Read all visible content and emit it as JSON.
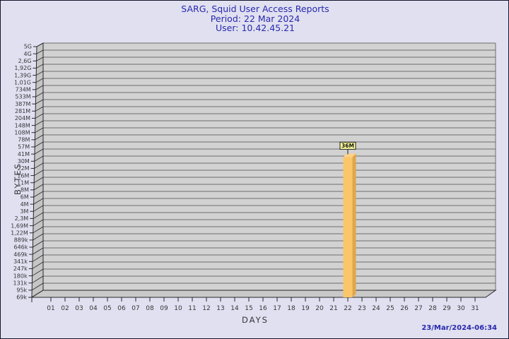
{
  "footer": {
    "timestamp": "23/Mar/2024-06:34"
  },
  "chart_data": {
    "type": "bar",
    "title": "SARG, Squid User Access Reports",
    "subtitle": "Period: 22 Mar 2024",
    "subtitle2": "User: 10.42.45.21",
    "xlabel": "DAYS",
    "ylabel": "BYTES",
    "y_scale": "log",
    "grid": true,
    "ylim": [
      "69k",
      "5G"
    ],
    "y_tick_labels": [
      "5G",
      "4G",
      "2,6G",
      "1,92G",
      "1,39G",
      "1,01G",
      "734M",
      "533M",
      "387M",
      "281M",
      "204M",
      "148M",
      "108M",
      "78M",
      "57M",
      "41M",
      "30M",
      "22M",
      "16M",
      "11M",
      "8M",
      "6M",
      "4M",
      "3M",
      "2,3M",
      "1,69M",
      "1,22M",
      "889k",
      "646k",
      "469k",
      "341k",
      "247k",
      "180k",
      "131k",
      "95k",
      "69k"
    ],
    "x_tick_labels": [
      "01",
      "02",
      "03",
      "04",
      "05",
      "06",
      "07",
      "08",
      "09",
      "10",
      "11",
      "12",
      "13",
      "14",
      "15",
      "16",
      "17",
      "18",
      "19",
      "20",
      "21",
      "22",
      "23",
      "24",
      "25",
      "26",
      "27",
      "28",
      "29",
      "30",
      "31"
    ],
    "bars": [
      {
        "day": "22",
        "label": "36M",
        "value": 36000000
      }
    ],
    "colors": {
      "page_bg": "#e0e0f0",
      "plot_bg": "#d2d2d2",
      "grid_line": "#6e6e6e",
      "wall": "#c5c5c5",
      "floor": "#c9c9c9",
      "edge": "#28282c",
      "axis_text": "#36363a",
      "title_text": "#2828ae",
      "bar_front": "#fbc669",
      "bar_side": "#e1a64c",
      "bar_top": "#fcd28a",
      "annotation_bg": "#ffff9c"
    }
  }
}
